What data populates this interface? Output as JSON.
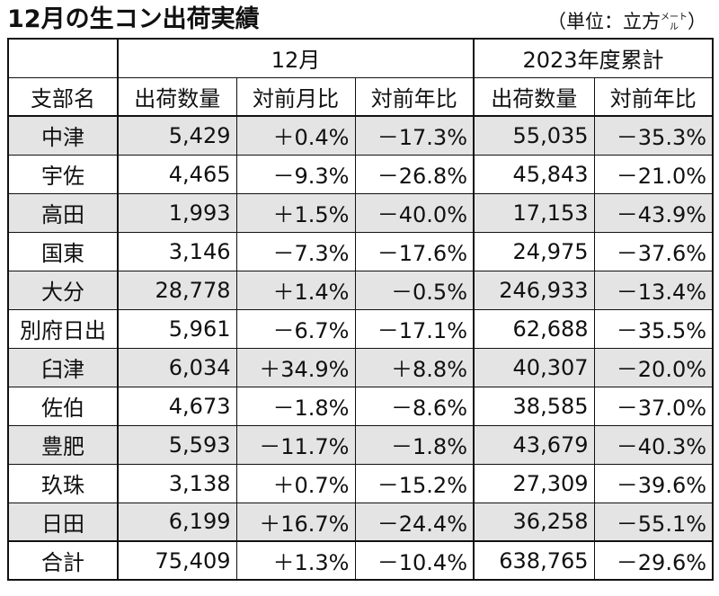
{
  "title": "12月の生コン出荷実績",
  "unit": {
    "prefix": "（単位：立方",
    "small": "メートル",
    "suffix": "）"
  },
  "headers": {
    "group_month": "12月",
    "group_cumulative": "2023年度累計",
    "branch": "支部名",
    "month_shipments": "出荷数量",
    "month_mom": "対前月比",
    "month_yoy": "対前年比",
    "cum_shipments": "出荷数量",
    "cum_yoy": "対前年比"
  },
  "rows": [
    {
      "name": "中津",
      "month_qty": "5,429",
      "mom": "＋0.4%",
      "yoy": "－17.3%",
      "cum_qty": "55,035",
      "cum_yoy": "－35.3%"
    },
    {
      "name": "宇佐",
      "month_qty": "4,465",
      "mom": "－9.3%",
      "yoy": "－26.8%",
      "cum_qty": "45,843",
      "cum_yoy": "－21.0%"
    },
    {
      "name": "高田",
      "month_qty": "1,993",
      "mom": "＋1.5%",
      "yoy": "－40.0%",
      "cum_qty": "17,153",
      "cum_yoy": "－43.9%"
    },
    {
      "name": "国東",
      "month_qty": "3,146",
      "mom": "－7.3%",
      "yoy": "－17.6%",
      "cum_qty": "24,975",
      "cum_yoy": "－37.6%"
    },
    {
      "name": "大分",
      "month_qty": "28,778",
      "mom": "＋1.4%",
      "yoy": "－0.5%",
      "cum_qty": "246,933",
      "cum_yoy": "－13.4%"
    },
    {
      "name": "別府日出",
      "month_qty": "5,961",
      "mom": "－6.7%",
      "yoy": "－17.1%",
      "cum_qty": "62,688",
      "cum_yoy": "－35.5%"
    },
    {
      "name": "臼津",
      "month_qty": "6,034",
      "mom": "＋34.9%",
      "yoy": "＋8.8%",
      "cum_qty": "40,307",
      "cum_yoy": "－20.0%"
    },
    {
      "name": "佐伯",
      "month_qty": "4,673",
      "mom": "－1.8%",
      "yoy": "－8.6%",
      "cum_qty": "38,585",
      "cum_yoy": "－37.0%"
    },
    {
      "name": "豊肥",
      "month_qty": "5,593",
      "mom": "－11.7%",
      "yoy": "－1.8%",
      "cum_qty": "43,679",
      "cum_yoy": "－40.3%"
    },
    {
      "name": "玖珠",
      "month_qty": "3,138",
      "mom": "＋0.7%",
      "yoy": "－15.2%",
      "cum_qty": "27,309",
      "cum_yoy": "－39.6%"
    },
    {
      "name": "日田",
      "month_qty": "6,199",
      "mom": "＋16.7%",
      "yoy": "－24.4%",
      "cum_qty": "36,258",
      "cum_yoy": "－55.1%"
    }
  ],
  "total": {
    "name": "合計",
    "month_qty": "75,409",
    "mom": "＋1.3%",
    "yoy": "－10.4%",
    "cum_qty": "638,765",
    "cum_yoy": "－29.6%"
  }
}
